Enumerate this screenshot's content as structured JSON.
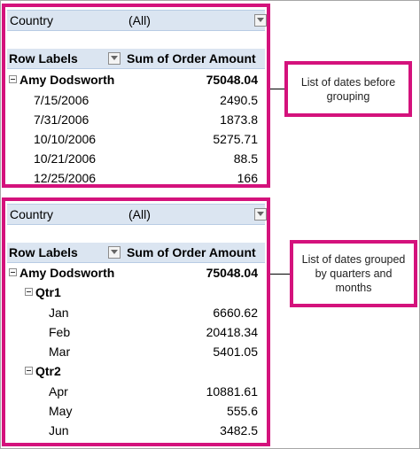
{
  "pivot_before": {
    "filter": {
      "label": "Country",
      "value": "(All)"
    },
    "header": {
      "row_labels": "Row Labels",
      "sum_label": "Sum of Order Amount"
    },
    "group": {
      "name": "Amy Dodsworth",
      "total": "75048.04"
    },
    "rows": [
      {
        "label": "7/15/2006",
        "amount": "2490.5"
      },
      {
        "label": "7/31/2006",
        "amount": "1873.8"
      },
      {
        "label": "10/10/2006",
        "amount": "5275.71"
      },
      {
        "label": "10/21/2006",
        "amount": "88.5"
      },
      {
        "label": "12/25/2006",
        "amount": "166"
      }
    ]
  },
  "pivot_after": {
    "filter": {
      "label": "Country",
      "value": "(All)"
    },
    "header": {
      "row_labels": "Row Labels",
      "sum_label": "Sum of Order Amount"
    },
    "group": {
      "name": "Amy Dodsworth",
      "total": "75048.04"
    },
    "quarters": [
      {
        "name": "Qtr1",
        "months": [
          {
            "label": "Jan",
            "amount": "6660.62"
          },
          {
            "label": "Feb",
            "amount": "20418.34"
          },
          {
            "label": "Mar",
            "amount": "5401.05"
          }
        ]
      },
      {
        "name": "Qtr2",
        "months": [
          {
            "label": "Apr",
            "amount": "10881.61"
          },
          {
            "label": "May",
            "amount": "555.6"
          },
          {
            "label": "Jun",
            "amount": "3482.5"
          }
        ]
      }
    ]
  },
  "callouts": {
    "before": "List of dates before grouping",
    "after": "List of dates grouped by quarters and months"
  },
  "colors": {
    "highlight_border": "#d4127c",
    "header_fill": "#dbe5f1"
  },
  "icons": {
    "filter_dropdown": "chevron-down-icon",
    "collapse": "minus-box-icon"
  }
}
